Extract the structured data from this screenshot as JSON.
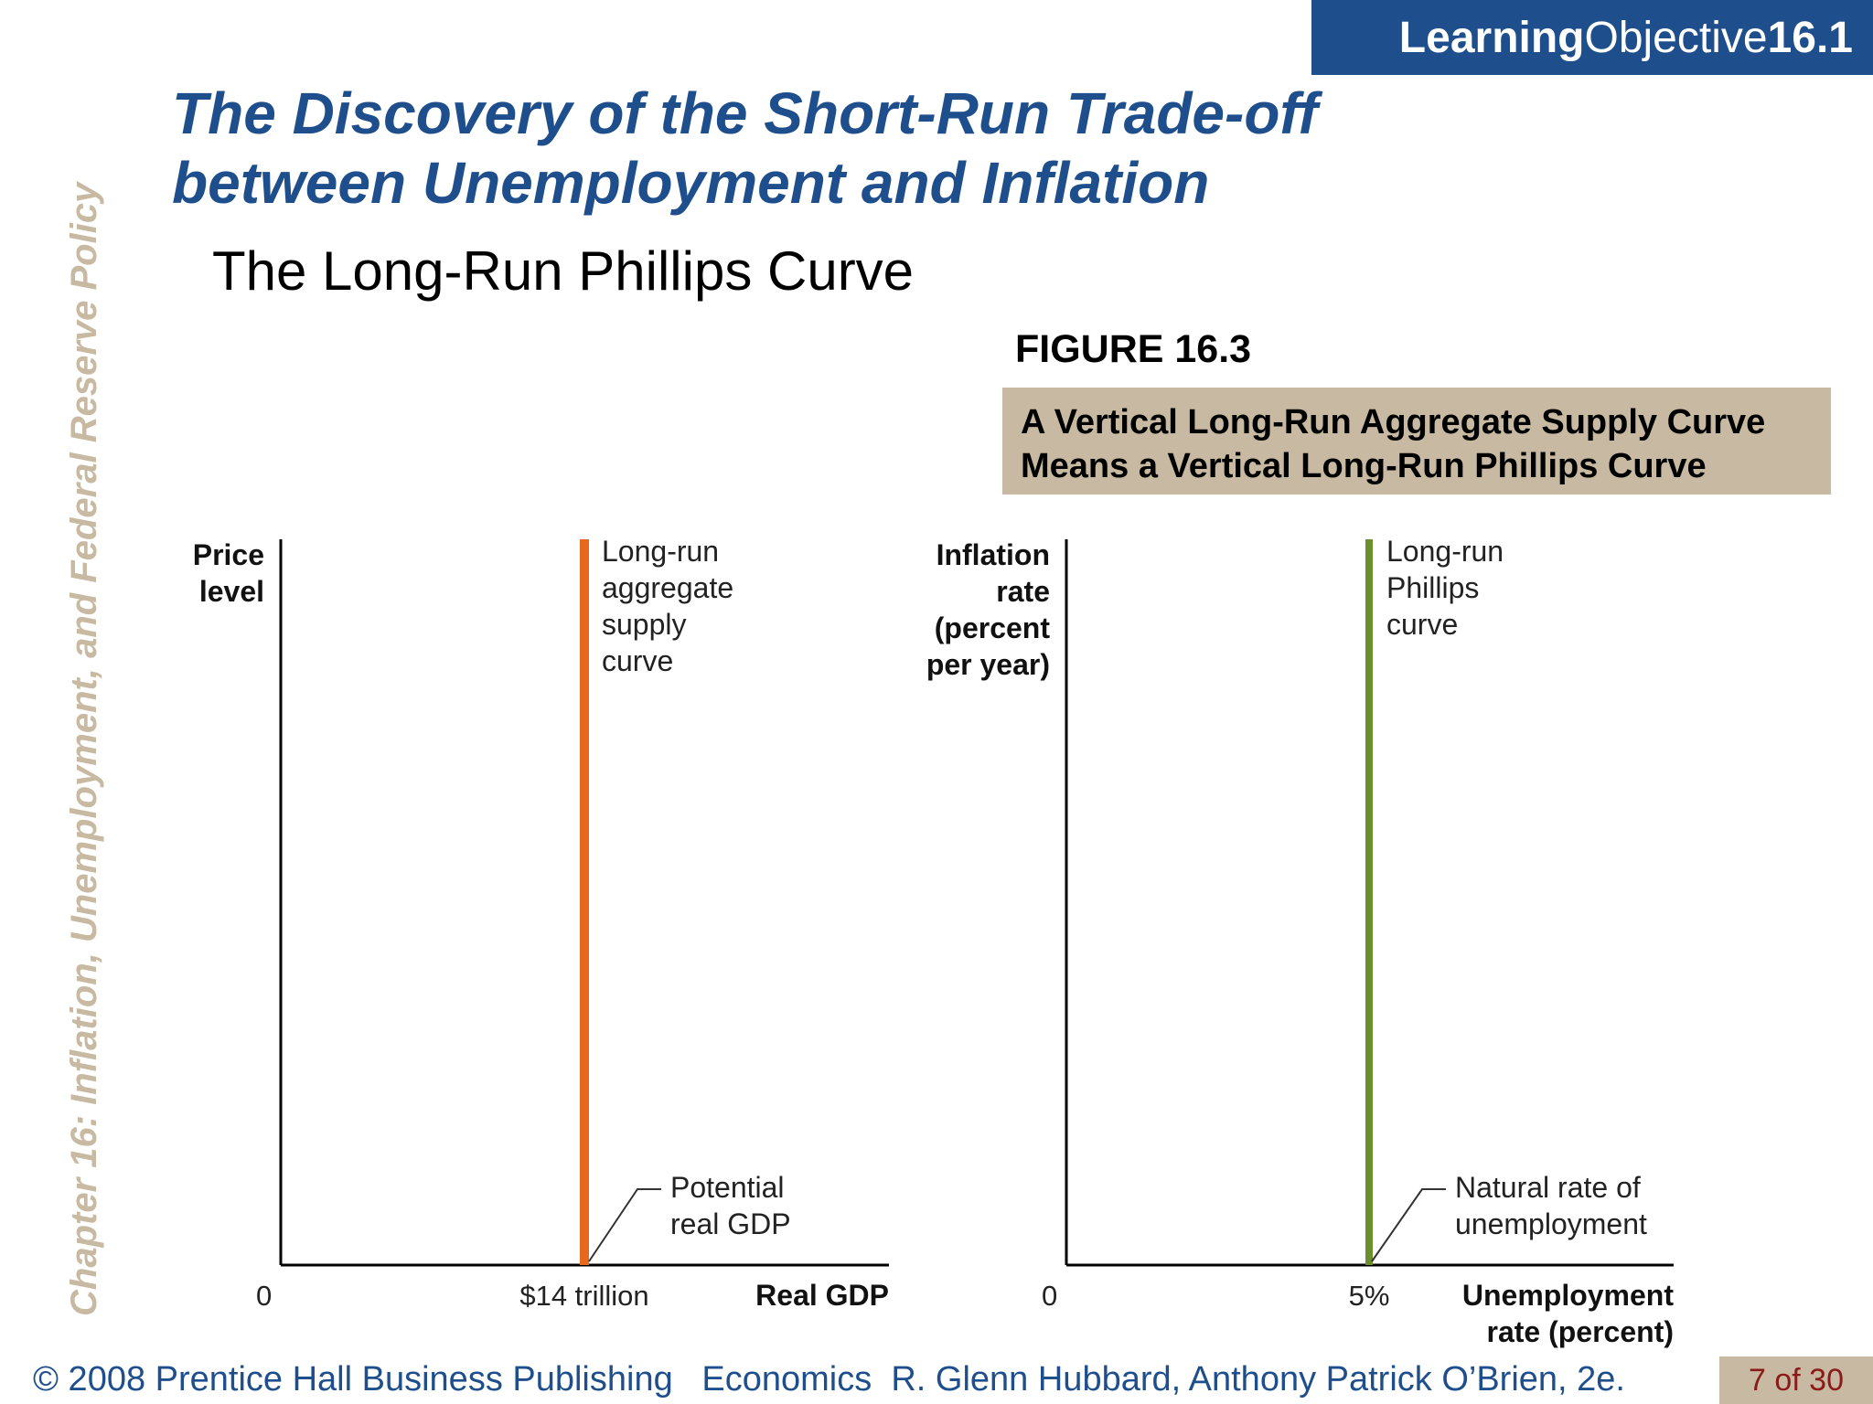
{
  "header": {
    "lo_word1": "Learning",
    "lo_word2": "Objective",
    "lo_number": "16.1"
  },
  "title": {
    "line1": "The Discovery of the Short-Run Trade-off",
    "line2": "between Unemployment and Inflation"
  },
  "subtitle": "The Long-Run Phillips Curve",
  "figure": {
    "label": "FIGURE 16.3",
    "caption_line1": "A Vertical Long-Run Aggregate Supply Curve",
    "caption_line2": "Means a Vertical Long-Run Phillips Curve"
  },
  "sidebar_text": "Chapter 16:  Inflation, Unemployment, and Federal Reserve Policy",
  "footer": {
    "text": "© 2008 Prentice Hall Business Publishing   Economics  R. Glenn Hubbard, Anthony Patrick O’Brien, 2e.",
    "page": "7 of 30"
  },
  "colors": {
    "brand_blue": "#1e4f8c",
    "tan": "#c7b9a2",
    "lras_orange": "#e8681e",
    "phillips_green": "#6b8e2e"
  },
  "chart_data": [
    {
      "type": "line",
      "xlabel": "Real GDP",
      "ylabel_lines": [
        "Price",
        "level"
      ],
      "origin_label": "0",
      "x_tick_label": "$14 trillion",
      "series": [
        {
          "name_lines": [
            "Long-run",
            "aggregate",
            "supply",
            "curve"
          ],
          "kind": "vertical",
          "x": 14,
          "color": "#e8681e"
        }
      ],
      "annotation": {
        "lines": [
          "Potential",
          "real GDP"
        ]
      }
    },
    {
      "type": "line",
      "xlabel_lines": [
        "Unemployment",
        "rate (percent)"
      ],
      "ylabel_lines": [
        "Inflation",
        "rate",
        "(percent",
        "per year)"
      ],
      "origin_label": "0",
      "x_tick_label": "5%",
      "series": [
        {
          "name_lines": [
            "Long-run",
            "Phillips",
            "curve"
          ],
          "kind": "vertical",
          "x": 5,
          "color": "#6b8e2e"
        }
      ],
      "annotation": {
        "lines": [
          "Natural rate of",
          "unemployment"
        ]
      }
    }
  ]
}
